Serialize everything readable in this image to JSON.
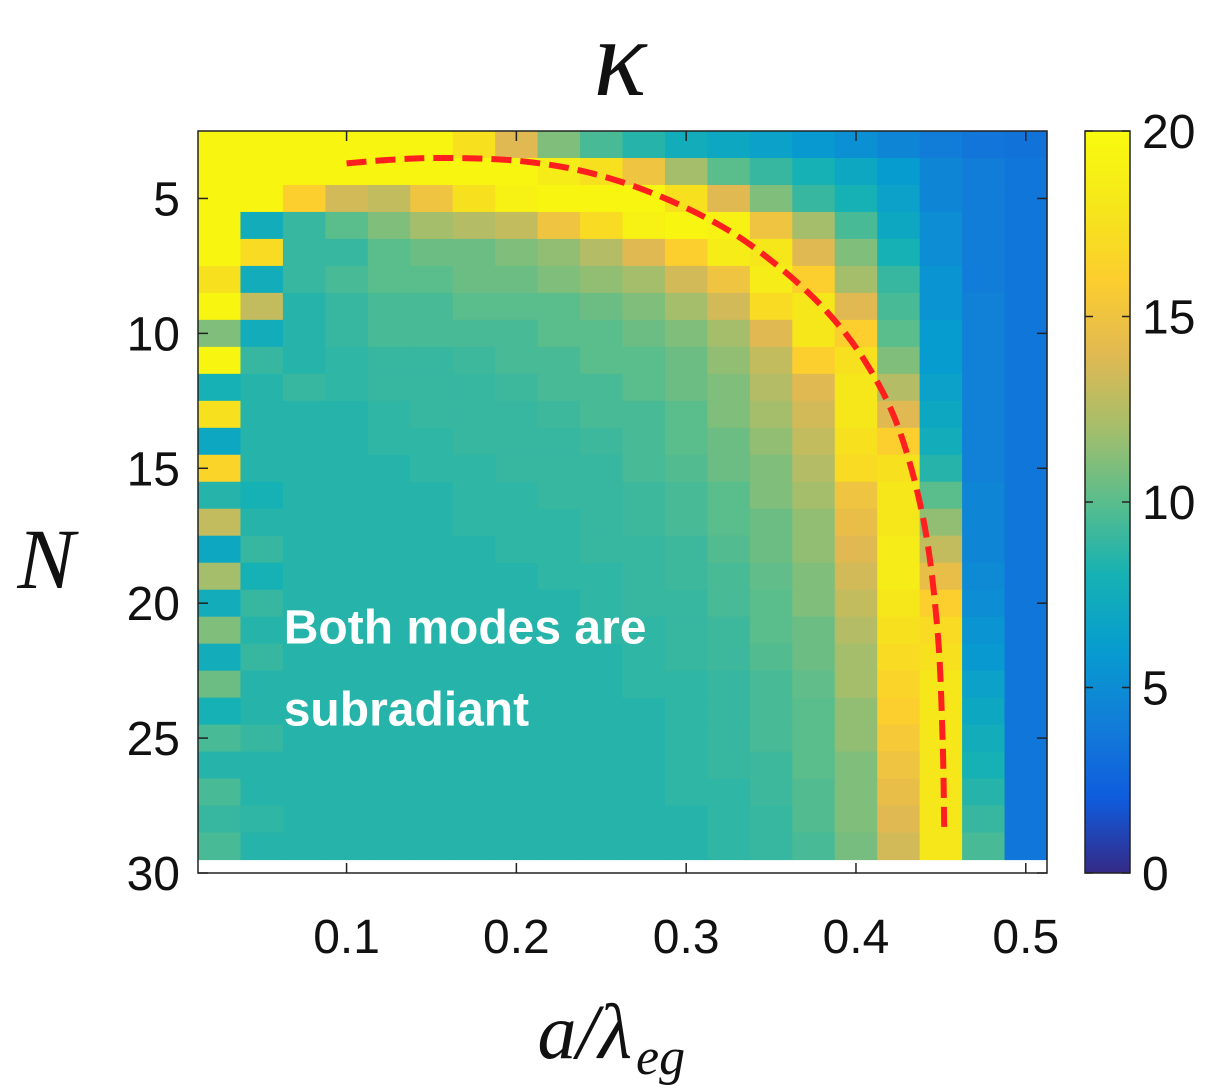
{
  "chart_data": {
    "type": "heatmap",
    "title": "κ",
    "xlabel_main": "a/λ",
    "xlabel_sub": "eg",
    "ylabel": "N",
    "xlim": [
      0.0125,
      0.5125
    ],
    "ylim": [
      2.5,
      30.0
    ],
    "x_ticks": [
      0.1,
      0.2,
      0.3,
      0.4,
      0.5
    ],
    "x_tick_labels": [
      "0.1",
      "0.2",
      "0.3",
      "0.4",
      "0.5"
    ],
    "y_ticks": [
      5,
      10,
      15,
      20,
      25,
      30
    ],
    "y_tick_labels": [
      "5",
      "10",
      "15",
      "20",
      "25",
      "30"
    ],
    "colorbar": {
      "min": 0,
      "max": 20,
      "ticks": [
        0,
        5,
        10,
        15,
        20
      ],
      "tick_labels": [
        "0",
        "5",
        "10",
        "15",
        "20"
      ],
      "colormap": "parula"
    },
    "x_centers": [
      0.025,
      0.05,
      0.075,
      0.1,
      0.125,
      0.15,
      0.175,
      0.2,
      0.225,
      0.25,
      0.275,
      0.3,
      0.325,
      0.35,
      0.375,
      0.4,
      0.425,
      0.45,
      0.475,
      0.5
    ],
    "y_centers": [
      3,
      4,
      5,
      6,
      7,
      8,
      9,
      10,
      11,
      12,
      13,
      14,
      15,
      16,
      17,
      18,
      19,
      20,
      21,
      22,
      23,
      24,
      25,
      26,
      27,
      28,
      29
    ],
    "values": [
      [
        19.5,
        19.5,
        19.5,
        19.5,
        19.5,
        19.5,
        17.5,
        14,
        11,
        9.5,
        8.5,
        7.5,
        7,
        6.5,
        5.8,
        5.2,
        4.5,
        4,
        3.5,
        3.4
      ],
      [
        19.5,
        19.5,
        19.5,
        19.5,
        19.5,
        19.5,
        19.5,
        19.5,
        18.5,
        17.5,
        15,
        12,
        10,
        9,
        8,
        7,
        6,
        4.5,
        4,
        3.6
      ],
      [
        19.5,
        19.5,
        16,
        13.5,
        13,
        15,
        17.5,
        19,
        19.5,
        19.5,
        19.5,
        17.5,
        14,
        11,
        9,
        8,
        6.5,
        4.5,
        4,
        3.6
      ],
      [
        19.5,
        7.5,
        9,
        10,
        11,
        12,
        12.5,
        13,
        15,
        17,
        19,
        19.5,
        19,
        15,
        12,
        9.5,
        7,
        5,
        4,
        3.6
      ],
      [
        19.5,
        17,
        9,
        9,
        10,
        10.5,
        10.5,
        11,
        11.5,
        12.5,
        14,
        16,
        18.5,
        18,
        14,
        11,
        8,
        5,
        4,
        3.6
      ],
      [
        17.5,
        7.5,
        9,
        9.5,
        10,
        10,
        10.5,
        10.5,
        11,
        11.5,
        12,
        13.5,
        15,
        18.5,
        16,
        12,
        9,
        5.5,
        4,
        3.6
      ],
      [
        19.5,
        13,
        8.5,
        9,
        9.5,
        9.5,
        10,
        10,
        10,
        10.5,
        11,
        12,
        13.5,
        17,
        18,
        14,
        9.5,
        5.5,
        4.2,
        3.6
      ],
      [
        11,
        7.5,
        8.5,
        9,
        9.5,
        9.5,
        9.5,
        9.5,
        10,
        10,
        10.5,
        11,
        12,
        14,
        18,
        16,
        10,
        6,
        4.2,
        3.6
      ],
      [
        19.5,
        9,
        8.5,
        8.8,
        9,
        9,
        9.2,
        9.5,
        9.5,
        10,
        10,
        10.5,
        11.5,
        13,
        16,
        17.5,
        11,
        6,
        4.2,
        3.6
      ],
      [
        8,
        8.5,
        9,
        8.8,
        9,
        9,
        9,
        9.2,
        9.5,
        9.5,
        10,
        10.5,
        11,
        12.5,
        14,
        18,
        12.5,
        6.5,
        4.2,
        3.6
      ],
      [
        17.5,
        8.5,
        8.5,
        8.5,
        8.8,
        9,
        9,
        9,
        9.2,
        9.5,
        9.5,
        10,
        11,
        12,
        13.5,
        18,
        14,
        7,
        4.2,
        3.6
      ],
      [
        7,
        8.5,
        8.5,
        8.5,
        8.8,
        8.8,
        9,
        9,
        9,
        9.2,
        9.5,
        10,
        10.5,
        11.5,
        13,
        17.5,
        16,
        7.5,
        4.2,
        3.6
      ],
      [
        16.5,
        8.5,
        8.5,
        8.5,
        8.5,
        8.8,
        8.8,
        9,
        9,
        9,
        9.5,
        9.8,
        10.5,
        11,
        12.5,
        17,
        17.5,
        8.5,
        4.2,
        3.6
      ],
      [
        8.5,
        8,
        8.5,
        8.5,
        8.5,
        8.5,
        8.8,
        8.8,
        9,
        9,
        9.2,
        9.5,
        10,
        11,
        12,
        15,
        18,
        10,
        4.5,
        3.6
      ],
      [
        13,
        8.5,
        8.5,
        8.5,
        8.5,
        8.5,
        8.8,
        8.8,
        8.8,
        9,
        9.2,
        9.5,
        10,
        10.5,
        11.5,
        14.5,
        18,
        11.5,
        4.5,
        3.6
      ],
      [
        7,
        9,
        8.5,
        8.5,
        8.5,
        8.5,
        8.5,
        8.8,
        8.8,
        9,
        9,
        9.2,
        9.8,
        10.5,
        11.5,
        14,
        18.5,
        13,
        4.5,
        3.6
      ],
      [
        12,
        8,
        8.5,
        8.5,
        8.5,
        8.5,
        8.5,
        8.5,
        8.8,
        8.8,
        9,
        9.2,
        9.5,
        10.2,
        11,
        13.5,
        18.5,
        14.5,
        4.8,
        3.6
      ],
      [
        7.5,
        9,
        8.5,
        8.5,
        8.5,
        8.5,
        8.5,
        8.5,
        8.5,
        8.8,
        9,
        9,
        9.5,
        10,
        11,
        13,
        18,
        16,
        5,
        3.6
      ],
      [
        11,
        8.5,
        8.5,
        8.5,
        8.5,
        8.5,
        8.5,
        8.5,
        8.5,
        8.8,
        8.8,
        9,
        9.2,
        10,
        10.5,
        12.5,
        17.5,
        17,
        5.5,
        3.6
      ],
      [
        7.5,
        9,
        8.5,
        8.5,
        8.5,
        8.5,
        8.5,
        8.5,
        8.5,
        8.5,
        8.8,
        9,
        9.2,
        9.8,
        10.5,
        12,
        17,
        17.5,
        5.8,
        3.6
      ],
      [
        10.5,
        8.5,
        8.5,
        8.5,
        8.5,
        8.5,
        8.5,
        8.5,
        8.5,
        8.5,
        8.8,
        8.8,
        9,
        9.5,
        10.2,
        12,
        16.5,
        18,
        6.5,
        3.6
      ],
      [
        8,
        8.5,
        8.5,
        8.5,
        8.5,
        8.5,
        8.5,
        8.5,
        8.5,
        8.5,
        8.5,
        8.8,
        9,
        9.5,
        10,
        11.5,
        16,
        18,
        7,
        3.6
      ],
      [
        9.5,
        9,
        8.5,
        8.5,
        8.5,
        8.5,
        8.5,
        8.5,
        8.5,
        8.5,
        8.5,
        8.8,
        9,
        9.5,
        10,
        11.5,
        15.5,
        18,
        7.5,
        3.6
      ],
      [
        8.5,
        8.5,
        8.5,
        8.5,
        8.5,
        8.5,
        8.5,
        8.5,
        8.5,
        8.5,
        8.5,
        8.8,
        9,
        9.2,
        10,
        11,
        15,
        18,
        8,
        3.6
      ],
      [
        9.5,
        8.5,
        8.5,
        8.5,
        8.5,
        8.5,
        8.5,
        8.5,
        8.5,
        8.5,
        8.5,
        8.8,
        8.8,
        9.2,
        9.8,
        11,
        14.5,
        18,
        8.5,
        3.6
      ],
      [
        9,
        8.8,
        8.5,
        8.5,
        8.5,
        8.5,
        8.5,
        8.5,
        8.5,
        8.5,
        8.5,
        8.5,
        8.8,
        9,
        9.8,
        11,
        14,
        18,
        9,
        3.6
      ],
      [
        9.5,
        8.5,
        8.5,
        8.5,
        8.5,
        8.5,
        8.5,
        8.5,
        8.5,
        8.5,
        8.5,
        8.5,
        8.8,
        9,
        9.5,
        10.8,
        13.5,
        18,
        9.5,
        3.6
      ]
    ],
    "boundary_curve": {
      "style": "dashed",
      "color": "#ff1f1f",
      "points": [
        [
          0.1,
          3.7
        ],
        [
          0.13,
          3.55
        ],
        [
          0.16,
          3.5
        ],
        [
          0.2,
          3.6
        ],
        [
          0.24,
          4.0
        ],
        [
          0.28,
          4.8
        ],
        [
          0.32,
          6.0
        ],
        [
          0.35,
          7.3
        ],
        [
          0.38,
          9.0
        ],
        [
          0.405,
          11.0
        ],
        [
          0.425,
          13.5
        ],
        [
          0.44,
          17.0
        ],
        [
          0.448,
          21.0
        ],
        [
          0.451,
          25.0
        ],
        [
          0.452,
          28.5
        ]
      ]
    },
    "annotation": {
      "lines": [
        "Both modes are",
        "subradiant"
      ],
      "anchor_x": 0.063,
      "anchor_y": 21.5
    }
  }
}
